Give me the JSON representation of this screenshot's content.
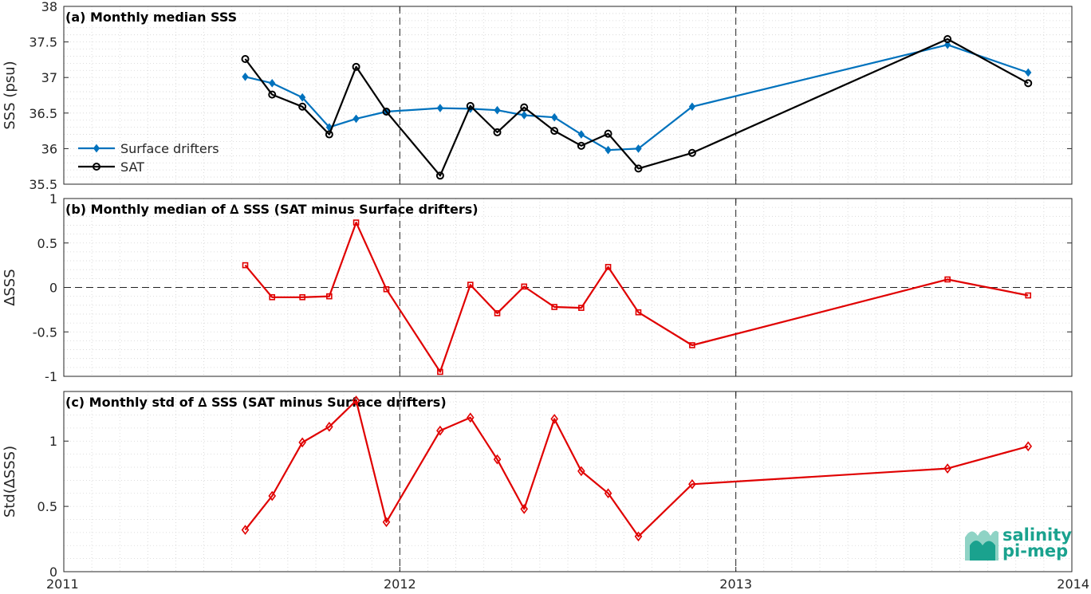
{
  "colors": {
    "drifters": "#0072bd",
    "sat": "#000000",
    "delta": "#e00000",
    "logo": "#1aa28e"
  },
  "logo": {
    "line1": "salinity",
    "line2": "pi-mep"
  },
  "chart_data": [
    {
      "type": "line",
      "title": "(a) Monthly median SSS",
      "ylabel": "SSS (psu)",
      "xlim": [
        2011,
        2014
      ],
      "ylim": [
        35.5,
        38
      ],
      "yticks": [
        35.5,
        36,
        36.5,
        37,
        37.5,
        38
      ],
      "ytick_labels": [
        "35.5",
        "36",
        "36.5",
        "37",
        "37.5",
        "38"
      ],
      "grid": "minor-dotted",
      "vlines": [
        2012,
        2013
      ],
      "legend": {
        "placement": "lower-left",
        "entries": [
          "Surface drifters",
          "SAT"
        ]
      },
      "x": [
        2011.54,
        2011.62,
        2011.71,
        2011.79,
        2011.87,
        2011.96,
        2012.12,
        2012.21,
        2012.29,
        2012.37,
        2012.46,
        2012.54,
        2012.62,
        2012.71,
        2012.87,
        2013.63,
        2013.87
      ],
      "series": [
        {
          "name": "Surface drifters",
          "marker": "diamond-filled",
          "values": [
            37.01,
            36.92,
            36.72,
            36.3,
            36.42,
            36.52,
            36.57,
            36.56,
            36.54,
            36.47,
            36.44,
            36.2,
            35.98,
            36.0,
            36.59,
            37.46,
            37.07
          ]
        },
        {
          "name": "SAT",
          "marker": "circle-open",
          "values": [
            37.26,
            36.76,
            36.59,
            36.2,
            37.15,
            36.52,
            35.62,
            36.6,
            36.23,
            36.58,
            36.25,
            36.04,
            36.21,
            35.72,
            35.94,
            37.54,
            36.92
          ]
        }
      ]
    },
    {
      "type": "line",
      "title": "(b) Monthly median of ∆ SSS (SAT minus Surface drifters)",
      "ylabel": "∆SSS",
      "xlim": [
        2011,
        2014
      ],
      "ylim": [
        -1,
        1
      ],
      "yticks": [
        -1,
        -0.5,
        0,
        0.5,
        1
      ],
      "ytick_labels": [
        "-1",
        "-0.5",
        "0",
        "0.5",
        "1"
      ],
      "grid": "minor-dotted",
      "vlines": [
        2012,
        2013
      ],
      "hline": 0,
      "x": [
        2011.54,
        2011.62,
        2011.71,
        2011.79,
        2011.87,
        2011.96,
        2012.12,
        2012.21,
        2012.29,
        2012.37,
        2012.46,
        2012.54,
        2012.62,
        2012.71,
        2012.87,
        2013.63,
        2013.87
      ],
      "series": [
        {
          "marker": "square-open",
          "values": [
            0.25,
            -0.11,
            -0.11,
            -0.1,
            0.73,
            -0.02,
            -0.95,
            0.03,
            -0.29,
            0.01,
            -0.22,
            -0.23,
            0.23,
            -0.28,
            -0.65,
            0.09,
            -0.09
          ]
        }
      ]
    },
    {
      "type": "line",
      "title": "(c) Monthly std of ∆ SSS (SAT minus Surface drifters)",
      "ylabel": "Std(∆SSS)",
      "xlim": [
        2011,
        2014
      ],
      "ylim": [
        0,
        1.38
      ],
      "yticks": [
        0,
        0.5,
        1
      ],
      "ytick_labels": [
        "0",
        "0.5",
        "1"
      ],
      "xticks": [
        2011,
        2012,
        2013,
        2014
      ],
      "xtick_labels": [
        "2011",
        "2012",
        "2013",
        "2014"
      ],
      "grid": "minor-dotted",
      "vlines": [
        2012,
        2013
      ],
      "x": [
        2011.54,
        2011.62,
        2011.71,
        2011.79,
        2011.87,
        2011.96,
        2012.12,
        2012.21,
        2012.29,
        2012.37,
        2012.46,
        2012.54,
        2012.62,
        2012.71,
        2012.87,
        2013.63,
        2013.87
      ],
      "series": [
        {
          "marker": "diamond-open",
          "values": [
            0.32,
            0.58,
            0.99,
            1.11,
            1.31,
            0.38,
            1.08,
            1.18,
            0.86,
            0.48,
            1.17,
            0.77,
            0.6,
            0.27,
            0.67,
            0.79,
            0.96
          ]
        }
      ]
    }
  ]
}
